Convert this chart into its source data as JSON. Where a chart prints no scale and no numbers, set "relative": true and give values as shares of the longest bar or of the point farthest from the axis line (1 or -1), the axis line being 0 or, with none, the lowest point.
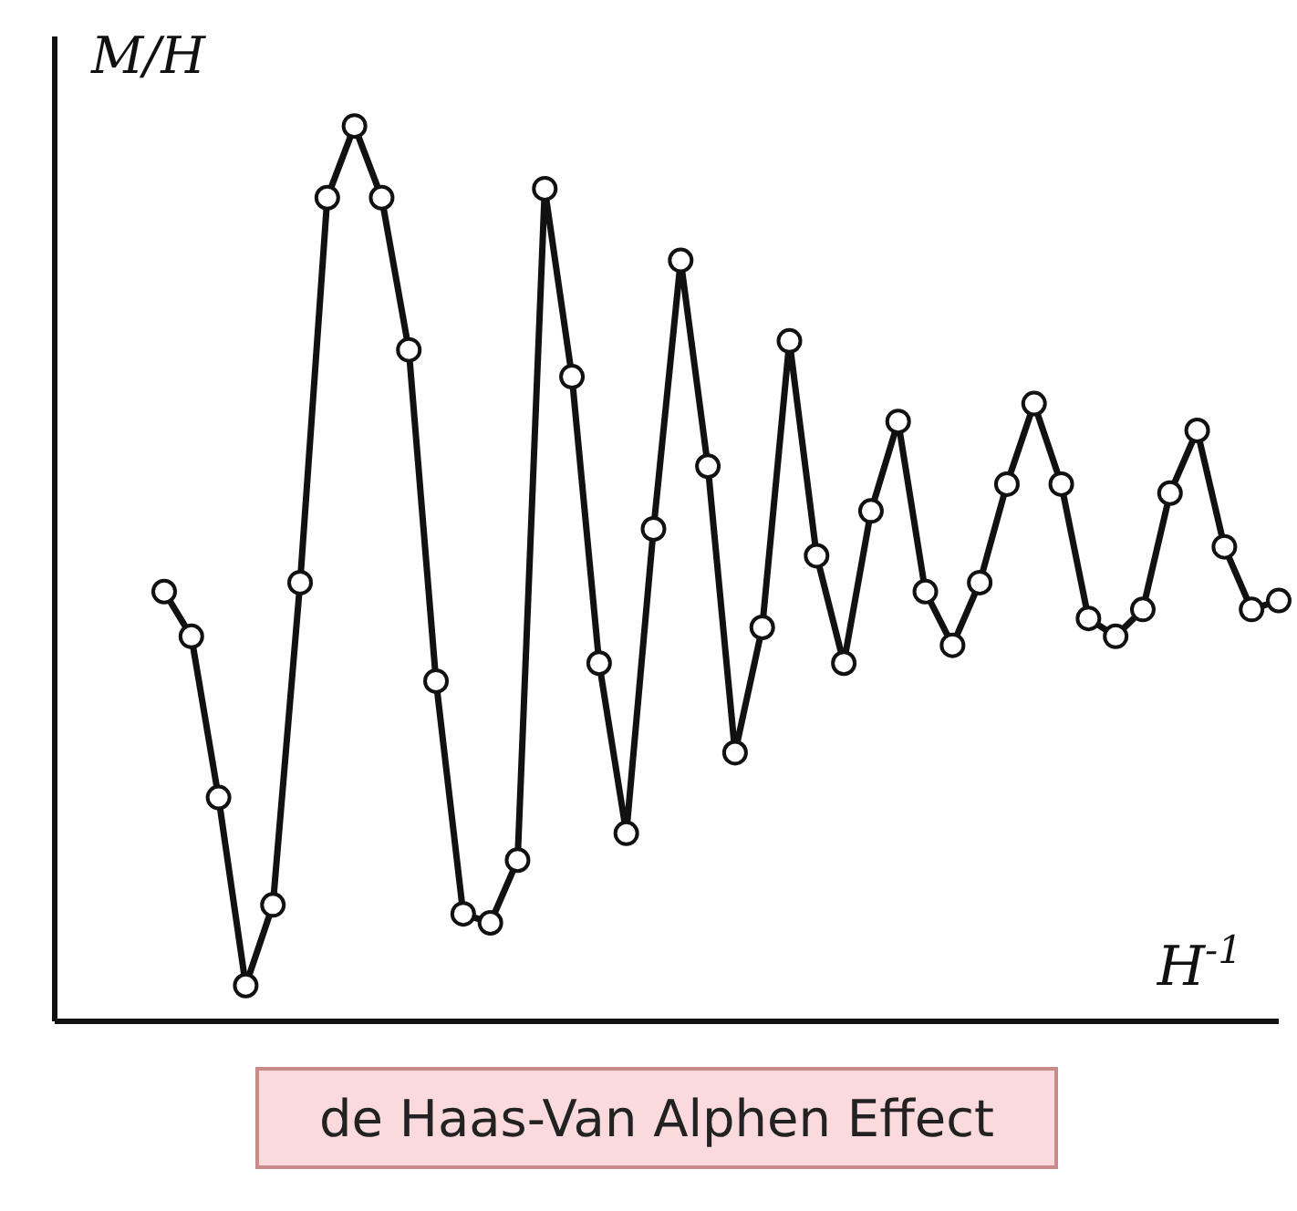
{
  "chart_data": {
    "type": "line",
    "relative": true,
    "xlabel": "H$^{-1}$",
    "ylabel": "M/H",
    "annotations": [
      "de Haas-Van Alphen Effect"
    ],
    "marker": "circle",
    "line_style": "solid",
    "categories": [
      null,
      null,
      null,
      null,
      null,
      null,
      null,
      null,
      null,
      null,
      null,
      null,
      null,
      null,
      null,
      null,
      null,
      null,
      null,
      null,
      null,
      null,
      null,
      null,
      null,
      null,
      null,
      null,
      null,
      null,
      null,
      null,
      null,
      null,
      null,
      null,
      null,
      null,
      null,
      null,
      null,
      null
    ],
    "series": [
      {
        "color": "#111111",
        "values": [
          0.48,
          0.43,
          0.25,
          0.04,
          0.13,
          0.49,
          0.92,
          1.0,
          0.92,
          0.75,
          0.38,
          0.12,
          0.11,
          0.18,
          0.93,
          0.72,
          0.4,
          0.21,
          0.55,
          0.85,
          0.62,
          0.3,
          0.44,
          0.76,
          0.52,
          0.4,
          0.57,
          0.67,
          0.48,
          0.42,
          0.49,
          0.6,
          0.69,
          0.6,
          0.45,
          0.43,
          0.46,
          0.59,
          0.66,
          0.53,
          0.46,
          0.47
        ]
      }
    ]
  }
}
